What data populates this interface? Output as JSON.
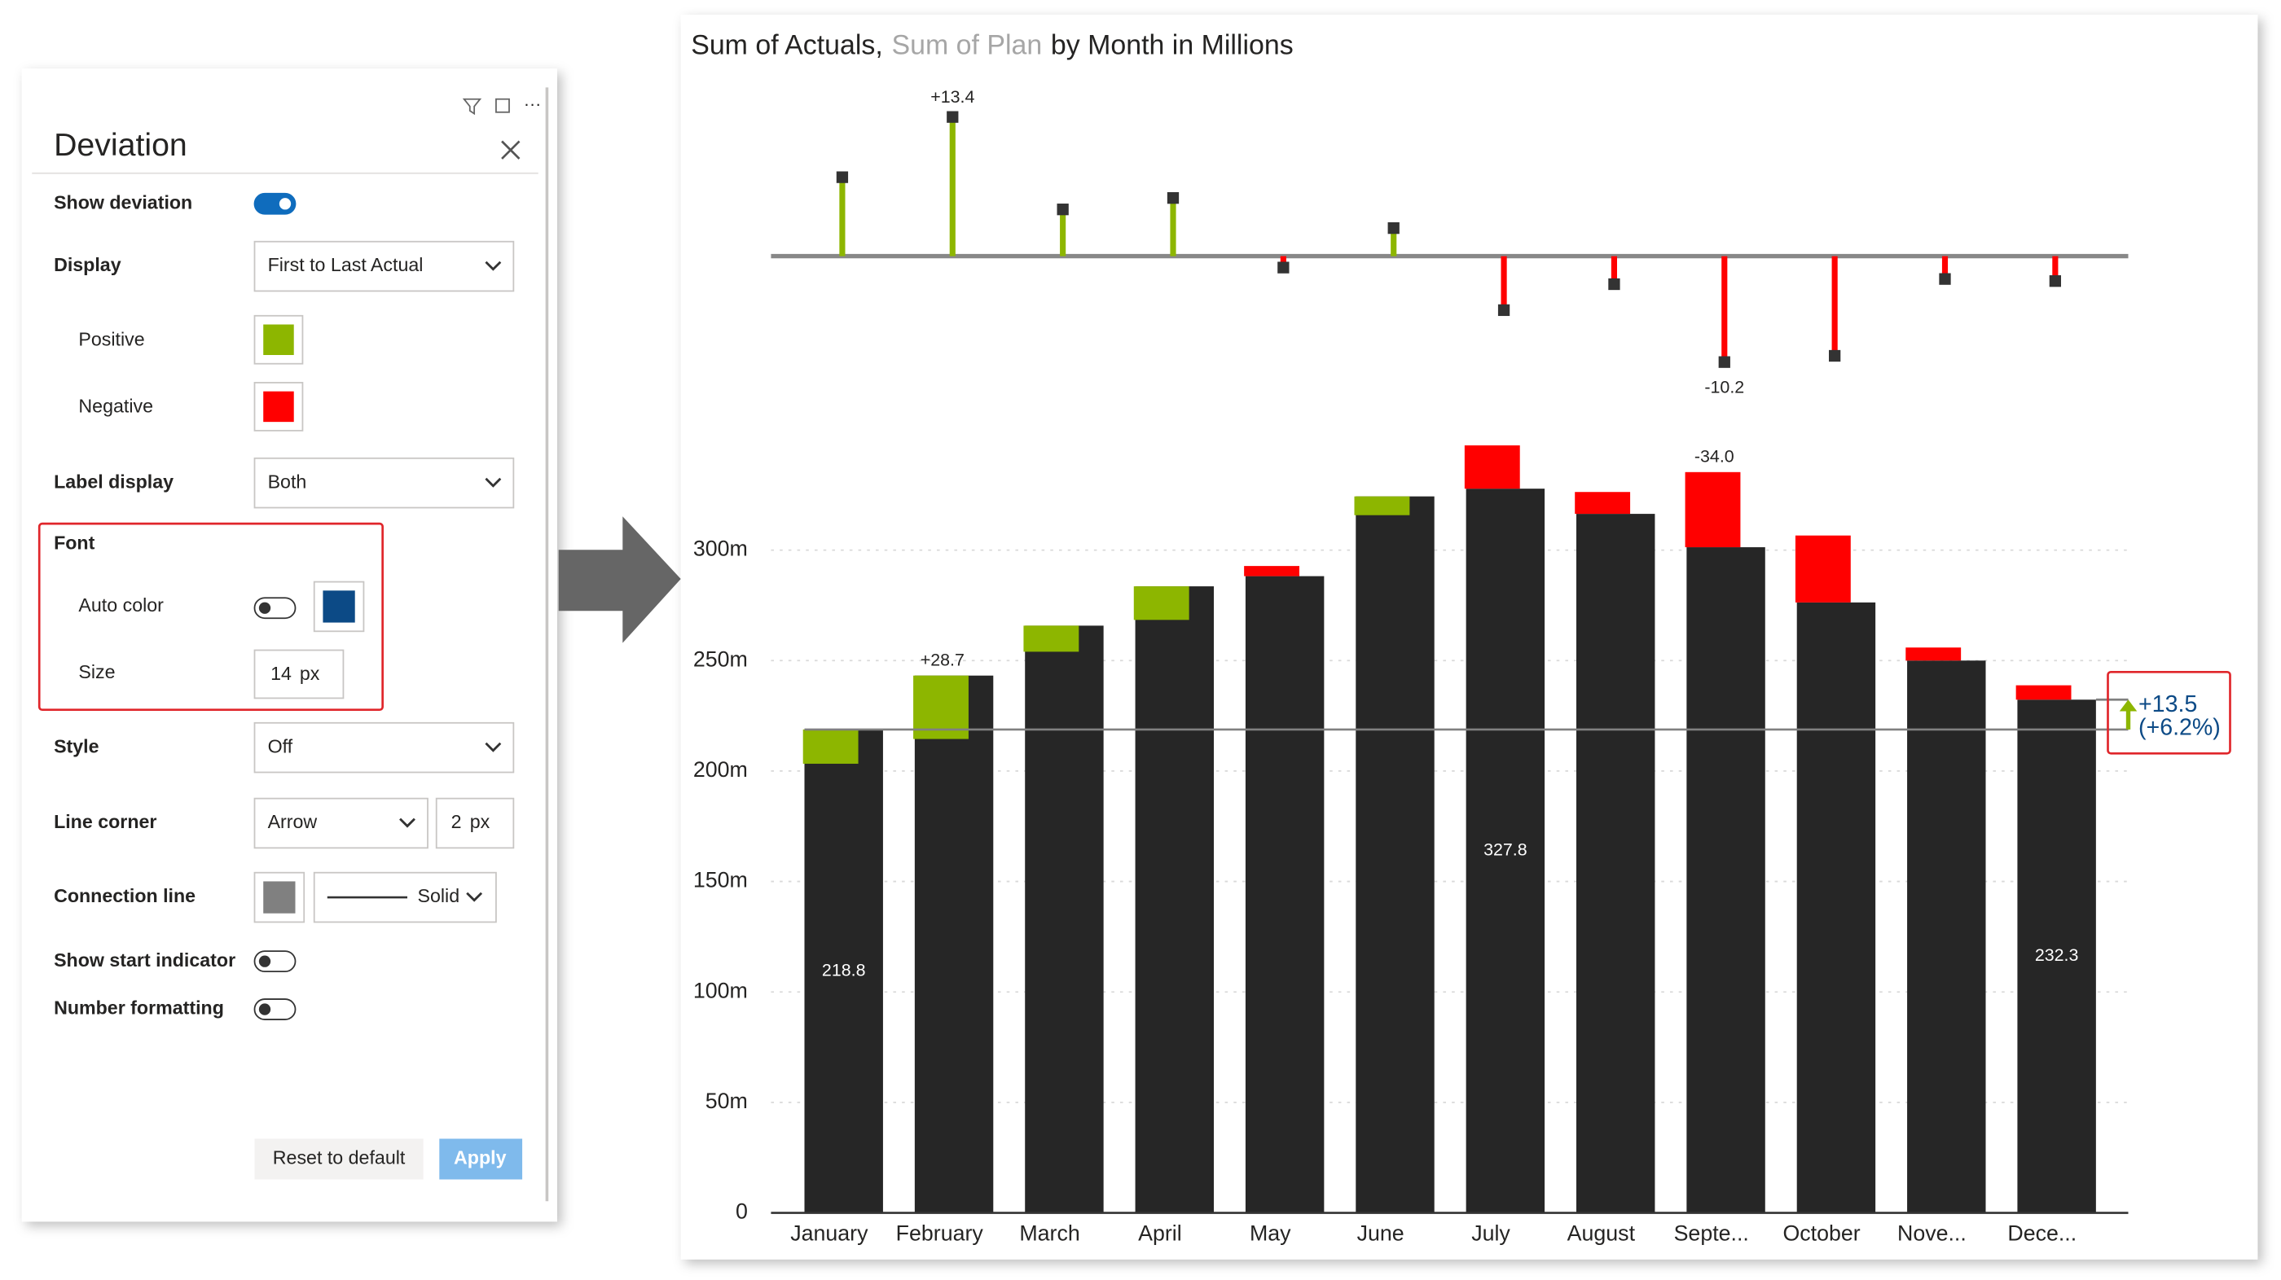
{
  "panel": {
    "title": "Deviation",
    "show_deviation": {
      "label": "Show deviation",
      "on": true
    },
    "display": {
      "label": "Display",
      "value": "First to Last Actual"
    },
    "positive": {
      "label": "Positive",
      "color": "#8db600"
    },
    "negative": {
      "label": "Negative",
      "color": "#ff0000"
    },
    "label_display": {
      "label": "Label display",
      "value": "Both"
    },
    "font": {
      "label": "Font",
      "auto_color": {
        "label": "Auto color",
        "on": false,
        "color": "#0c4a86"
      },
      "size": {
        "label": "Size",
        "value": "14",
        "unit": "px"
      }
    },
    "style": {
      "label": "Style",
      "value": "Off"
    },
    "line_corner": {
      "label": "Line corner",
      "value": "Arrow",
      "width": "2",
      "unit": "px"
    },
    "connection_line": {
      "label": "Connection line",
      "color": "#808080",
      "value": "Solid"
    },
    "show_start_indicator": {
      "label": "Show start indicator",
      "on": false
    },
    "number_formatting": {
      "label": "Number formatting",
      "on": false
    },
    "buttons": {
      "reset": "Reset to default",
      "apply": "Apply"
    }
  },
  "chart_data": {
    "type": "bar",
    "title_parts": [
      "Sum of Actuals,",
      "Sum of Plan",
      "by Month in Millions"
    ],
    "categories": [
      "January",
      "February",
      "March",
      "April",
      "May",
      "June",
      "July",
      "August",
      "Septe...",
      "October",
      "Nove...",
      "Dece..."
    ],
    "series": [
      {
        "color": "#262626",
        "values": [
          218.8,
          243.2,
          265.8,
          283.6,
          288.2,
          324.3,
          327.8,
          316.4,
          301.3,
          276.3,
          250.0,
          232.3
        ],
        "value_labels": [
          "218.8",
          null,
          null,
          null,
          null,
          null,
          "327.8",
          null,
          null,
          null,
          null,
          "232.3"
        ]
      },
      {
        "color": "#a6a6a6",
        "values": [
          203.3,
          214.5,
          254.0,
          268.4,
          292.8,
          315.8,
          347.4,
          326.3,
          335.3,
          306.6,
          255.9,
          238.8
        ],
        "variance_labels": [
          null,
          "+28.7",
          null,
          null,
          null,
          null,
          null,
          null,
          "-34.0",
          null,
          null,
          null
        ]
      }
    ],
    "positive_color": "#8db600",
    "negative_color": "#ff0000",
    "ylim": [
      0,
      360
    ],
    "yticks": [
      0,
      {
        "value": 50,
        "label": "50m"
      },
      {
        "value": 100,
        "label": "100m"
      },
      {
        "value": 150,
        "label": "150m"
      },
      {
        "value": 200,
        "label": "200m"
      },
      {
        "value": 250,
        "label": "250m"
      },
      {
        "value": 300,
        "label": "300m"
      }
    ],
    "grid": true,
    "deviation": {
      "values": [
        7.6,
        13.4,
        4.5,
        5.6,
        -1.1,
        2.7,
        -5.2,
        -2.7,
        -10.2,
        -9.6,
        -2.2,
        -2.4
      ],
      "value_labels": [
        null,
        "+13.4",
        null,
        null,
        null,
        null,
        null,
        null,
        "-10.2",
        null,
        null,
        null
      ],
      "ylim": [
        -14,
        16.8
      ]
    },
    "total": {
      "value": 13.5,
      "label": "+13.5",
      "percent": 6.2,
      "percent_label": "(+6.2%)",
      "color": "#0c4a86"
    }
  }
}
